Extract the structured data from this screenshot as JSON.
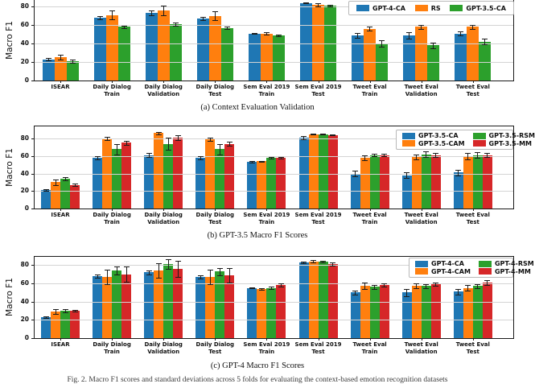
{
  "figure": {
    "ylabel": "Macro F1",
    "caption_bottom": "Fig. 2. Macro F1 scores and standard deviations across 5 folds for evaluating the context-based emotion recognition datasets"
  },
  "chart_data": [
    {
      "id": "a",
      "type": "bar",
      "title": "(a) Context Evaluation Validation",
      "ylabel": "Macro F1",
      "ylim": [
        0,
        87
      ],
      "yticks": [
        0,
        20,
        40,
        60,
        80
      ],
      "grid": true,
      "legend_position": "top-right-row",
      "categories": [
        [
          "ISEAR"
        ],
        [
          "Daily Dialog",
          "Train"
        ],
        [
          "Daily Dialog",
          "Validation"
        ],
        [
          "Daily Dialog",
          "Test"
        ],
        [
          "Sem Eval 2019",
          "Train"
        ],
        [
          "Sem Eval 2019",
          "Test"
        ],
        [
          "Tweet Eval",
          "Train"
        ],
        [
          "Tweet Eval",
          "Validation"
        ],
        [
          "Tweet Eval",
          "Test"
        ]
      ],
      "series": [
        {
          "name": "GPT-4-CA",
          "color": "#1f77b4",
          "values": [
            23,
            68,
            73,
            67,
            51,
            84,
            49,
            49,
            51
          ],
          "errors": [
            1,
            2,
            2.5,
            2,
            0.7,
            0.5,
            2.5,
            3.5,
            2.5
          ]
        },
        {
          "name": "RS",
          "color": "#ff7f0e",
          "values": [
            25,
            71,
            76,
            70,
            51,
            82,
            56,
            58,
            58
          ],
          "errors": [
            2.5,
            5,
            5.5,
            5,
            1,
            1.5,
            2,
            2,
            2.5
          ]
        },
        {
          "name": "GPT-3.5-CA",
          "color": "#2ca02c",
          "values": [
            21,
            58,
            61,
            57,
            49,
            81,
            40,
            38,
            42
          ],
          "errors": [
            1.5,
            1.5,
            2,
            1.5,
            1,
            1,
            3.5,
            3,
            3
          ]
        }
      ]
    },
    {
      "id": "b",
      "type": "bar",
      "title": "(b) GPT-3.5 Macro F1 Scores",
      "ylabel": "Macro F1",
      "ylim": [
        0,
        94
      ],
      "yticks": [
        0,
        20,
        40,
        60,
        80
      ],
      "grid": true,
      "legend_position": "right-grid",
      "categories": [
        [
          "ISEAR"
        ],
        [
          "Daily Dialog",
          "Train"
        ],
        [
          "Daily Dialog",
          "Validation"
        ],
        [
          "Daily Dialog",
          "Test"
        ],
        [
          "Sem Eval 2019",
          "Train"
        ],
        [
          "Sem Eval 2019",
          "Test"
        ],
        [
          "Tweet Eval",
          "Train"
        ],
        [
          "Tweet Eval",
          "Validation"
        ],
        [
          "Tweet Eval",
          "Test"
        ]
      ],
      "series": [
        {
          "name": "GPT-3.5-CA",
          "color": "#1f77b4",
          "values": [
            21,
            58,
            61,
            58,
            53,
            81,
            40,
            38,
            41
          ],
          "errors": [
            1,
            2,
            2,
            1.5,
            1,
            1.5,
            3.5,
            3,
            3.5
          ]
        },
        {
          "name": "GPT-3.5-CAM",
          "color": "#ff7f0e",
          "values": [
            30,
            80,
            86,
            79,
            54,
            85,
            58,
            59,
            60
          ],
          "errors": [
            3,
            1.5,
            1.5,
            1.5,
            0.7,
            0.4,
            3,
            3,
            3.5
          ]
        },
        {
          "name": "GPT-3.5-RSM",
          "color": "#2ca02c",
          "values": [
            34,
            68,
            74,
            68,
            58,
            85,
            61,
            62,
            61
          ],
          "errors": [
            1.5,
            6,
            7,
            6,
            1.2,
            0.4,
            1.5,
            3,
            3.5
          ]
        },
        {
          "name": "GPT-3.5-MM",
          "color": "#d62728",
          "values": [
            27,
            75,
            81,
            74,
            58,
            84,
            61,
            61,
            61
          ],
          "errors": [
            1.5,
            2,
            2.5,
            2.5,
            1.2,
            0.5,
            1.5,
            2.5,
            2
          ]
        }
      ]
    },
    {
      "id": "c",
      "type": "bar",
      "title": "(c) GPT-4 Macro F1 Scores",
      "ylabel": "Macro F1",
      "ylim": [
        0,
        90
      ],
      "yticks": [
        0,
        20,
        40,
        60,
        80
      ],
      "grid": true,
      "legend_position": "right-grid",
      "categories": [
        [
          "ISEAR"
        ],
        [
          "Daily Dialog",
          "Train"
        ],
        [
          "Daily Dialog",
          "Validation"
        ],
        [
          "Daily Dialog",
          "Test"
        ],
        [
          "Sem Eval 2019",
          "Train"
        ],
        [
          "Sem Eval 2019",
          "Test"
        ],
        [
          "Tweet Eval",
          "Train"
        ],
        [
          "Tweet Eval",
          "Validation"
        ],
        [
          "Tweet Eval",
          "Test"
        ]
      ],
      "series": [
        {
          "name": "GPT-4-CA",
          "color": "#1f77b4",
          "values": [
            23,
            68,
            72,
            67,
            55,
            83,
            50,
            50,
            51
          ],
          "errors": [
            1,
            2,
            2,
            2,
            0.5,
            1,
            2,
            4,
            3
          ]
        },
        {
          "name": "GPT-4-CAM",
          "color": "#ff7f0e",
          "values": [
            29,
            67,
            74,
            67,
            54,
            84,
            57,
            57,
            55
          ],
          "errors": [
            2.5,
            8,
            8,
            8,
            1,
            1.5,
            3.5,
            2.5,
            3
          ]
        },
        {
          "name": "GPT-4-RSM",
          "color": "#2ca02c",
          "values": [
            30,
            74,
            81,
            73,
            55,
            84,
            56,
            57,
            57
          ],
          "errors": [
            1.5,
            4,
            5,
            4,
            1,
            1,
            2,
            2,
            2
          ]
        },
        {
          "name": "GPT-4-MM",
          "color": "#d62728",
          "values": [
            30,
            70,
            76,
            69,
            58,
            81,
            58,
            59,
            61
          ],
          "errors": [
            1,
            8,
            9,
            8,
            2,
            2,
            2,
            1.5,
            2.5
          ]
        }
      ]
    }
  ]
}
